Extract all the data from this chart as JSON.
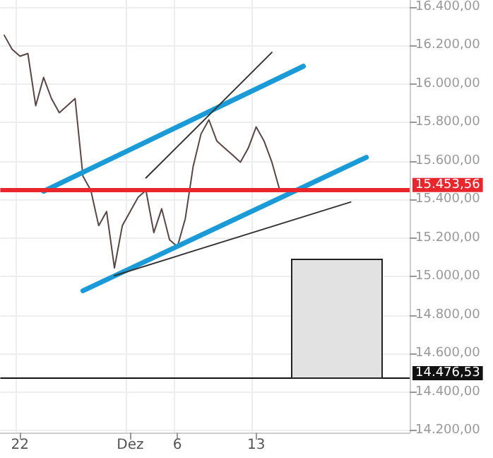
{
  "chart_data": {
    "type": "line",
    "ylim": [
      14190,
      16436
    ],
    "categories": [
      null,
      null,
      "22",
      null,
      null,
      null,
      null,
      null,
      null,
      null,
      null,
      null,
      null,
      null,
      null,
      null,
      "Dez",
      null,
      null,
      null,
      null,
      null,
      "6",
      null,
      null,
      null,
      null,
      null,
      null,
      null,
      null,
      null,
      "13",
      null,
      null,
      null,
      null,
      null,
      null,
      null,
      null,
      null,
      null,
      null,
      null,
      null,
      null,
      null,
      null,
      null,
      null,
      null
    ],
    "yticks": [
      {
        "value": 14200,
        "label": "14.200,00"
      },
      {
        "value": 14400,
        "label": "14.400,00"
      },
      {
        "value": 14600,
        "label": "14.600,00"
      },
      {
        "value": 14800,
        "label": "14.800,00"
      },
      {
        "value": 15000,
        "label": "15.000,00"
      },
      {
        "value": 15200,
        "label": "15.200,00"
      },
      {
        "value": 15400,
        "label": "15.400,00"
      },
      {
        "value": 15600,
        "label": "15.600,00"
      },
      {
        "value": 15800,
        "label": "15.800,00"
      },
      {
        "value": 16000,
        "label": "16.000,00"
      },
      {
        "value": 16200,
        "label": "16.200,00"
      },
      {
        "value": 16400,
        "label": "16.400,00"
      }
    ],
    "grid": true,
    "marker": "none",
    "line_style": "solid",
    "series": [
      {
        "color": "#5a4646",
        "values": [
          16253,
          16180,
          16144,
          16158,
          15887,
          16034,
          15924,
          15851,
          15887,
          15924,
          15521,
          15448,
          15264,
          15338,
          15045,
          15264,
          15338,
          15411,
          15448,
          15228,
          15352,
          15191,
          15155,
          15301,
          15572,
          15741,
          15814,
          15704,
          15667,
          15631,
          15594,
          15667,
          15777,
          15704,
          15594,
          15448,
          null,
          null,
          null,
          null,
          null,
          null,
          null,
          null,
          null,
          null,
          null,
          null,
          null,
          null,
          null,
          null
        ]
      },
      {
        "color": "#1a9ad6",
        "values": [
          null,
          null,
          null,
          null,
          null,
          15443,
          null,
          null,
          null,
          null,
          null,
          null,
          null,
          null,
          null,
          null,
          null,
          null,
          null,
          null,
          null,
          null,
          null,
          null,
          null,
          null,
          null,
          null,
          null,
          null,
          null,
          null,
          null,
          null,
          null,
          null,
          null,
          null,
          16092,
          null,
          null,
          null,
          null,
          null,
          null,
          null,
          null,
          null,
          null,
          null,
          null,
          null
        ]
      },
      {
        "color": "#1a9ad6",
        "values": [
          null,
          null,
          null,
          null,
          null,
          null,
          null,
          null,
          null,
          null,
          14926,
          null,
          null,
          null,
          null,
          null,
          null,
          null,
          null,
          null,
          null,
          null,
          null,
          null,
          null,
          null,
          null,
          null,
          null,
          null,
          null,
          null,
          null,
          null,
          null,
          null,
          null,
          null,
          null,
          null,
          null,
          null,
          null,
          null,
          null,
          null,
          15619,
          null,
          null,
          null,
          null,
          null
        ]
      },
      {
        "color": "#333333",
        "values": [
          null,
          null,
          null,
          null,
          null,
          null,
          null,
          null,
          null,
          null,
          null,
          null,
          null,
          null,
          null,
          null,
          null,
          null,
          15512,
          null,
          null,
          null,
          null,
          null,
          null,
          null,
          null,
          null,
          null,
          null,
          null,
          null,
          null,
          null,
          16164,
          null,
          null,
          null,
          null,
          null,
          null,
          null,
          null,
          null,
          null,
          null,
          null,
          null,
          null,
          null,
          null,
          null
        ]
      },
      {
        "color": "#333333",
        "values": [
          null,
          null,
          null,
          null,
          null,
          null,
          null,
          null,
          null,
          null,
          null,
          null,
          null,
          null,
          15005,
          null,
          null,
          null,
          null,
          null,
          null,
          null,
          null,
          null,
          null,
          null,
          null,
          null,
          null,
          null,
          null,
          null,
          null,
          null,
          null,
          null,
          null,
          null,
          null,
          null,
          null,
          null,
          null,
          null,
          15387,
          null,
          null,
          null,
          null,
          null,
          null,
          null
        ]
      }
    ],
    "ref_lines": [
      {
        "axis": "y",
        "value": 15453.56,
        "label": "15.453,56",
        "color": "#e8262c"
      },
      {
        "axis": "y",
        "value": 14476.53,
        "label": "14.476,53",
        "color": "#111111"
      }
    ]
  }
}
